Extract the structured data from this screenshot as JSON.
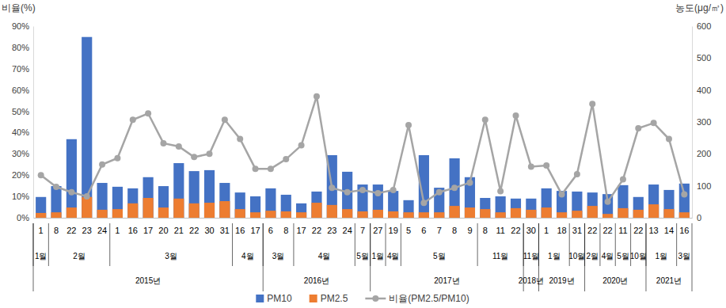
{
  "chart_data": {
    "type": "bar",
    "y_label": "비율(%)",
    "y2_label": "농도(μg/㎥)",
    "categories": [
      [
        "2015년",
        "1월",
        "1"
      ],
      [
        "2015년",
        "2월",
        "8"
      ],
      [
        "2015년",
        "2월",
        "22"
      ],
      [
        "2015년",
        "2월",
        "23"
      ],
      [
        "2015년",
        "2월",
        "24"
      ],
      [
        "2015년",
        "3월",
        "1"
      ],
      [
        "2015년",
        "3월",
        "16"
      ],
      [
        "2015년",
        "3월",
        "17"
      ],
      [
        "2015년",
        "3월",
        "20"
      ],
      [
        "2015년",
        "3월",
        "21"
      ],
      [
        "2015년",
        "3월",
        "22"
      ],
      [
        "2015년",
        "3월",
        "30"
      ],
      [
        "2015년",
        "3월",
        "31"
      ],
      [
        "2015년",
        "4월",
        "16"
      ],
      [
        "2015년",
        "4월",
        "17"
      ],
      [
        "2016년",
        "3월",
        "6"
      ],
      [
        "2016년",
        "3월",
        "8"
      ],
      [
        "2016년",
        "4월",
        "17"
      ],
      [
        "2016년",
        "4월",
        "22"
      ],
      [
        "2016년",
        "4월",
        "23"
      ],
      [
        "2016년",
        "4월",
        "24"
      ],
      [
        "2016년",
        "5월",
        "7"
      ],
      [
        "2017년",
        "1월",
        "27"
      ],
      [
        "2017년",
        "4월",
        "19"
      ],
      [
        "2017년",
        "5월",
        "5"
      ],
      [
        "2017년",
        "5월",
        "6"
      ],
      [
        "2017년",
        "5월",
        "7"
      ],
      [
        "2017년",
        "5월",
        "8"
      ],
      [
        "2017년",
        "5월",
        "9"
      ],
      [
        "2017년",
        "11월",
        "8"
      ],
      [
        "2017년",
        "11월",
        "11"
      ],
      [
        "2017년",
        "11월",
        "22"
      ],
      [
        "2018년",
        "11월",
        "30"
      ],
      [
        "2019년",
        "1월",
        "1"
      ],
      [
        "2019년",
        "1월",
        "18"
      ],
      [
        "2019년",
        "10월",
        "31"
      ],
      [
        "2020년",
        "2월",
        "22"
      ],
      [
        "2020년",
        "4월",
        "22"
      ],
      [
        "2020년",
        "5월",
        "11"
      ],
      [
        "2020년",
        "10월",
        "22"
      ],
      [
        "2021년",
        "1월",
        "13"
      ],
      [
        "2021년",
        "1월",
        "14"
      ],
      [
        "2021년",
        "3월",
        "16"
      ]
    ],
    "series": [
      {
        "name": "PM10",
        "type": "bar",
        "color": "#4472C4",
        "axis": "y2",
        "values": [
          65,
          99,
          246,
          566,
          109,
          97,
          92,
          127,
          99,
          171,
          146,
          149,
          109,
          79,
          67,
          92,
          72,
          45,
          82,
          196,
          144,
          104,
          104,
          84,
          55,
          196,
          94,
          186,
          127,
          62,
          67,
          60,
          60,
          92,
          84,
          82,
          79,
          74,
          102,
          65,
          104,
          87,
          107
        ]
      },
      {
        "name": "PM2.5",
        "type": "bar",
        "color": "#ED7D31",
        "axis": "y2",
        "values": [
          15,
          17,
          32,
          65,
          25,
          27,
          45,
          62,
          32,
          60,
          45,
          47,
          52,
          27,
          17,
          22,
          20,
          17,
          47,
          40,
          27,
          20,
          25,
          20,
          17,
          17,
          17,
          37,
          32,
          27,
          17,
          30,
          25,
          32,
          17,
          22,
          37,
          12,
          30,
          25,
          42,
          27,
          17
        ]
      },
      {
        "name": "비율(PM2.5/PM10)",
        "type": "line",
        "color": "#A5A5A5",
        "marker": "circle",
        "values": [
          20,
          14.5,
          12,
          10,
          25,
          28,
          46,
          49,
          35,
          33.5,
          28.5,
          30,
          46,
          37,
          23,
          23,
          27.5,
          34,
          57,
          14,
          12,
          13,
          11.5,
          13,
          43.5,
          7,
          12,
          14,
          16.5,
          46,
          12.5,
          48,
          24,
          24.5,
          11,
          20.5,
          53.5,
          7.5,
          18,
          42,
          44.5,
          37,
          11
        ]
      }
    ],
    "ylim": [
      0,
      90
    ],
    "yticks": [
      {
        "value": 0,
        "label": "0%"
      },
      {
        "value": 10,
        "label": "10%"
      },
      {
        "value": 20,
        "label": "20%"
      },
      {
        "value": 30,
        "label": "30%"
      },
      {
        "value": 40,
        "label": "40%"
      },
      {
        "value": 50,
        "label": "50%"
      },
      {
        "value": 60,
        "label": "60%"
      },
      {
        "value": 70,
        "label": "70%"
      },
      {
        "value": 80,
        "label": "80%"
      },
      {
        "value": 90,
        "label": "90%"
      }
    ],
    "y2lim": [
      0,
      600
    ],
    "y2ticks": [
      0,
      100,
      200,
      300,
      400,
      500,
      600
    ],
    "stacked": false,
    "grid": false,
    "legend": "bottom"
  }
}
